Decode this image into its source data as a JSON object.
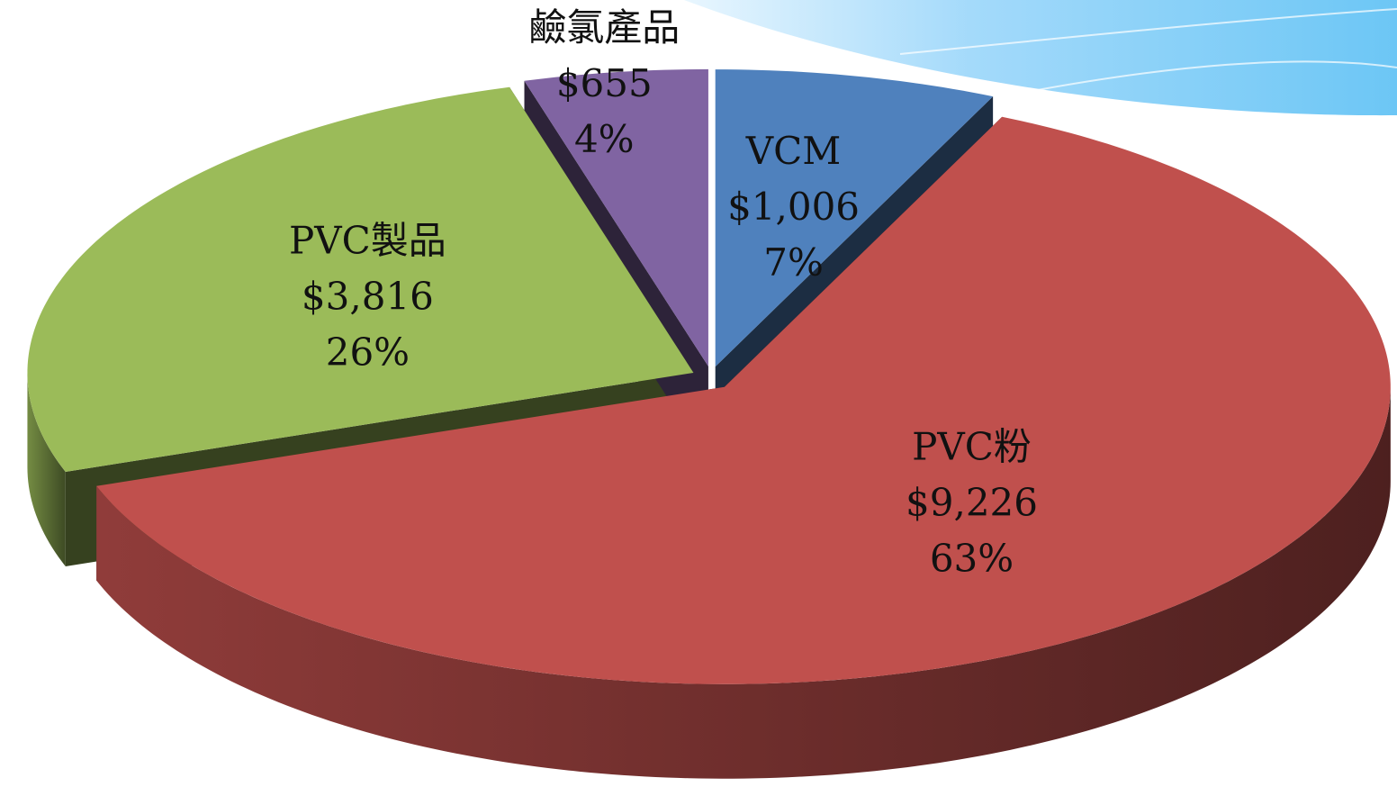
{
  "chart_data": {
    "type": "pie",
    "categories": [
      "VCM",
      "PVC粉",
      "PVC製品",
      "鹼氯產品"
    ],
    "values": [
      1006,
      9226,
      3816,
      655
    ],
    "value_labels": [
      "$1,006",
      "$9,226",
      "$3,816",
      "$655"
    ],
    "percent_labels": [
      "7%",
      "63%",
      "26%",
      "4%"
    ],
    "colors": [
      "#4f81bd",
      "#c0504d",
      "#9bbb59",
      "#8064a2"
    ]
  }
}
